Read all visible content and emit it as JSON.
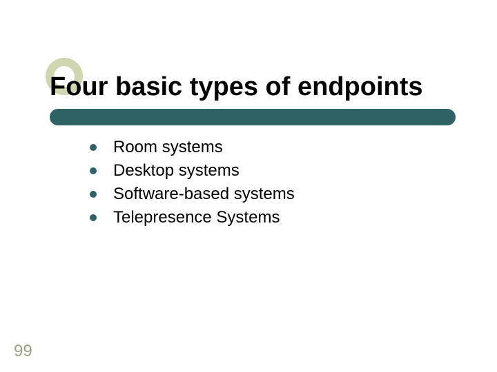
{
  "slide": {
    "title": "Four basic types of endpoints",
    "bullets": [
      {
        "text": "Room systems"
      },
      {
        "text": "Desktop systems"
      },
      {
        "text": "Software-based systems"
      },
      {
        "text": "Telepresence Systems"
      }
    ],
    "page_number": "99",
    "styling": {
      "title_fontsize": 38,
      "title_color": "#000000",
      "title_font_weight": "bold",
      "bullet_fontsize": 24,
      "bullet_text_color": "#000000",
      "bullet_dot_color": "#2f6264",
      "bullet_dot_diameter": 10,
      "underline_bar_color": "#2f6264",
      "underline_bar_height": 24,
      "underline_bar_width": 588,
      "underline_bar_radius": 12,
      "accent_circle_border_color": "#d0d6b0",
      "accent_circle_outer_diameter": 54,
      "accent_circle_border_width": 12,
      "page_number_color": "#9aa07a",
      "page_number_fontsize": 24,
      "background_color": "#ffffff",
      "slide_width": 720,
      "slide_height": 540
    }
  }
}
